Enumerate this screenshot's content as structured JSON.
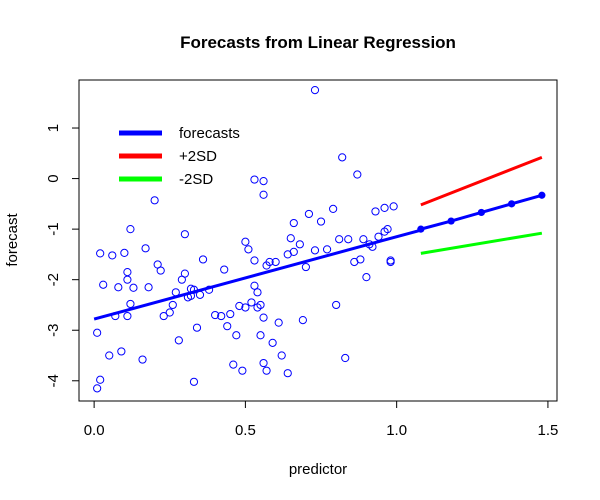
{
  "chart_data": {
    "type": "scatter",
    "title": "Forecasts from Linear Regression",
    "xlabel": "predictor",
    "ylabel": "forecast",
    "xlim": [
      -0.05,
      1.53
    ],
    "ylim": [
      -4.4,
      1.95
    ],
    "x_ticks": [
      0.0,
      0.5,
      1.0,
      1.5
    ],
    "x_tick_labels": [
      "0.0",
      "0.5",
      "1.0",
      "1.5"
    ],
    "y_ticks": [
      -4,
      -3,
      -2,
      -1,
      0,
      1
    ],
    "y_tick_labels": [
      "-4",
      "-3",
      "-2",
      "-1",
      "0",
      "1"
    ],
    "grid": false,
    "legend_position": "top-left",
    "colors": {
      "points": "#0000ff",
      "fit": "#0000ff",
      "forecasts": "#0000ff",
      "upper": "#ff0000",
      "lower": "#00ff00"
    },
    "points": [
      [
        0.01,
        -3.05
      ],
      [
        0.01,
        -4.15
      ],
      [
        0.02,
        -3.98
      ],
      [
        0.02,
        -1.48
      ],
      [
        0.03,
        -2.1
      ],
      [
        0.05,
        -3.5
      ],
      [
        0.06,
        -1.52
      ],
      [
        0.07,
        -2.72
      ],
      [
        0.08,
        -2.15
      ],
      [
        0.09,
        -3.42
      ],
      [
        0.1,
        -1.47
      ],
      [
        0.11,
        -2.0
      ],
      [
        0.11,
        -2.72
      ],
      [
        0.11,
        -1.85
      ],
      [
        0.12,
        -2.48
      ],
      [
        0.12,
        -1.0
      ],
      [
        0.13,
        -2.16
      ],
      [
        0.16,
        -3.58
      ],
      [
        0.17,
        -1.38
      ],
      [
        0.18,
        -2.15
      ],
      [
        0.2,
        -0.43
      ],
      [
        0.21,
        -1.7
      ],
      [
        0.22,
        -1.82
      ],
      [
        0.23,
        -2.72
      ],
      [
        0.25,
        -2.65
      ],
      [
        0.26,
        -2.5
      ],
      [
        0.27,
        -2.25
      ],
      [
        0.28,
        -3.2
      ],
      [
        0.29,
        -2.0
      ],
      [
        0.3,
        -1.88
      ],
      [
        0.3,
        -1.1
      ],
      [
        0.31,
        -2.35
      ],
      [
        0.32,
        -2.18
      ],
      [
        0.32,
        -2.32
      ],
      [
        0.33,
        -2.2
      ],
      [
        0.33,
        -4.02
      ],
      [
        0.34,
        -2.95
      ],
      [
        0.35,
        -2.3
      ],
      [
        0.36,
        -1.6
      ],
      [
        0.38,
        -2.2
      ],
      [
        0.4,
        -2.7
      ],
      [
        0.42,
        -2.72
      ],
      [
        0.43,
        -1.8
      ],
      [
        0.44,
        -2.92
      ],
      [
        0.45,
        -2.68
      ],
      [
        0.46,
        -3.68
      ],
      [
        0.47,
        -3.1
      ],
      [
        0.48,
        -2.52
      ],
      [
        0.49,
        -3.8
      ],
      [
        0.5,
        -2.55
      ],
      [
        0.5,
        -1.25
      ],
      [
        0.51,
        -1.4
      ],
      [
        0.52,
        -2.45
      ],
      [
        0.53,
        -1.62
      ],
      [
        0.53,
        -2.12
      ],
      [
        0.54,
        -2.55
      ],
      [
        0.54,
        -2.25
      ],
      [
        0.55,
        -2.5
      ],
      [
        0.55,
        -3.1
      ],
      [
        0.56,
        -3.65
      ],
      [
        0.56,
        -2.75
      ],
      [
        0.57,
        -1.72
      ],
      [
        0.57,
        -3.8
      ],
      [
        0.58,
        -1.65
      ],
      [
        0.59,
        -3.25
      ],
      [
        0.6,
        -1.65
      ],
      [
        0.61,
        -2.85
      ],
      [
        0.62,
        -3.5
      ],
      [
        0.53,
        -0.02
      ],
      [
        0.56,
        -0.05
      ],
      [
        0.56,
        -0.32
      ],
      [
        0.64,
        -3.85
      ],
      [
        0.64,
        -1.5
      ],
      [
        0.65,
        -1.18
      ],
      [
        0.66,
        -0.88
      ],
      [
        0.66,
        -1.45
      ],
      [
        0.68,
        -1.3
      ],
      [
        0.69,
        -2.8
      ],
      [
        0.7,
        -1.75
      ],
      [
        0.71,
        -0.7
      ],
      [
        0.73,
        1.75
      ],
      [
        0.73,
        -1.42
      ],
      [
        0.75,
        -0.85
      ],
      [
        0.77,
        -1.4
      ],
      [
        0.79,
        -0.6
      ],
      [
        0.8,
        -2.5
      ],
      [
        0.81,
        -1.2
      ],
      [
        0.82,
        0.42
      ],
      [
        0.83,
        -3.55
      ],
      [
        0.84,
        -1.2
      ],
      [
        0.86,
        -1.65
      ],
      [
        0.87,
        0.08
      ],
      [
        0.88,
        -1.6
      ],
      [
        0.89,
        -1.2
      ],
      [
        0.9,
        -1.95
      ],
      [
        0.91,
        -1.3
      ],
      [
        0.92,
        -1.35
      ],
      [
        0.93,
        -0.65
      ],
      [
        0.94,
        -1.15
      ],
      [
        0.96,
        -0.58
      ],
      [
        0.96,
        -1.05
      ],
      [
        0.97,
        -1.0
      ],
      [
        0.98,
        -1.62
      ],
      [
        0.98,
        -1.65
      ],
      [
        0.99,
        -0.55
      ]
    ],
    "fit_line": {
      "x": [
        0.0,
        1.08
      ],
      "y": [
        -2.78,
        -1.02
      ]
    },
    "forecasts": {
      "x": [
        1.08,
        1.18,
        1.28,
        1.38,
        1.48
      ],
      "y": [
        -1.0,
        -0.84,
        -0.67,
        -0.5,
        -0.33
      ]
    },
    "upper_2sd": {
      "x": [
        1.08,
        1.48
      ],
      "y": [
        -0.52,
        0.42
      ]
    },
    "lower_2sd": {
      "x": [
        1.08,
        1.48
      ],
      "y": [
        -1.48,
        -1.08
      ]
    },
    "legend": [
      {
        "label": "forecasts",
        "color": "#0000ff"
      },
      {
        "label": "+2SD",
        "color": "#ff0000"
      },
      {
        "label": "-2SD",
        "color": "#00ff00"
      }
    ]
  }
}
